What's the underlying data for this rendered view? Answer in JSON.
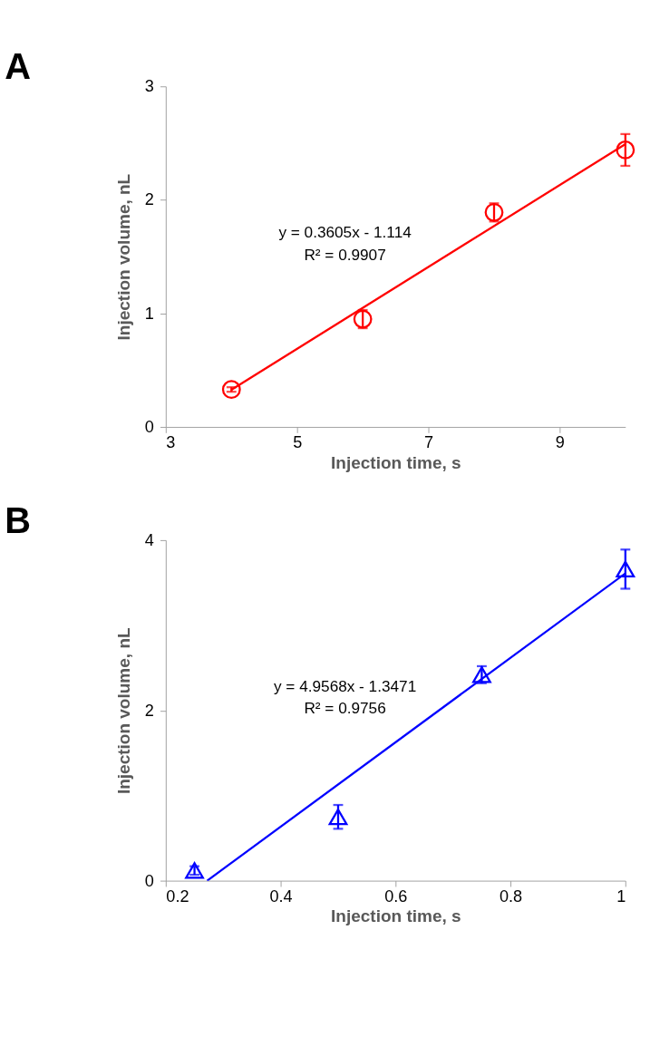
{
  "chart_data": [
    {
      "type": "scatter",
      "title": "A",
      "xlabel": "Injection time, s",
      "ylabel": "Injection volume, nL",
      "xlim": [
        3,
        10
      ],
      "xticks": [
        3,
        5,
        7,
        9
      ],
      "ylim": [
        0,
        3
      ],
      "yticks": [
        0,
        1,
        2,
        3
      ],
      "grid": false,
      "legend": false,
      "annotations": [
        "y = 0.3605x - 1.114",
        "R² = 0.9907"
      ],
      "series": [
        {
          "type": "scatter",
          "color": "#ff0000",
          "marker": "circle",
          "x": [
            4,
            6,
            8,
            10
          ],
          "values": [
            0.33,
            0.95,
            1.89,
            2.44
          ],
          "errors": [
            0.02,
            0.08,
            0.08,
            0.14
          ]
        },
        {
          "type": "line",
          "color": "#ff0000",
          "marker": "none",
          "x": [
            4,
            10
          ],
          "values": [
            0.328,
            2.491
          ]
        }
      ]
    },
    {
      "type": "scatter",
      "title": "B",
      "xlabel": "Injection time, s",
      "ylabel": "Injection volume, nL",
      "xlim": [
        0.2,
        1
      ],
      "xticks": [
        0.2,
        0.4,
        0.6,
        0.8,
        1
      ],
      "ylim": [
        0,
        4
      ],
      "yticks": [
        0,
        2,
        4
      ],
      "grid": false,
      "legend": false,
      "annotations": [
        "y = 4.9568x - 1.3471",
        "R² = 0.9756"
      ],
      "series": [
        {
          "type": "scatter",
          "color": "#0000ff",
          "marker": "triangle",
          "x": [
            0.25,
            0.5,
            0.75,
            1
          ],
          "values": [
            0.12,
            0.75,
            2.42,
            3.66
          ],
          "errors": [
            0.05,
            0.14,
            0.1,
            0.23
          ]
        },
        {
          "type": "line",
          "color": "#0000ff",
          "marker": "none",
          "x": [
            0.272,
            1
          ],
          "values": [
            0.0,
            3.61
          ]
        }
      ]
    }
  ]
}
